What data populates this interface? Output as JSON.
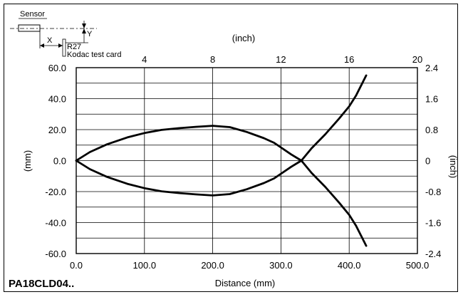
{
  "figure_code": "PA18CLD04..",
  "diagram": {
    "sensor_label": "Sensor",
    "x_label": "X",
    "y_label": "Y",
    "target_label": "R27",
    "card_label": "Kodac test card"
  },
  "chart_data": {
    "type": "line",
    "xlabel": "Distance (mm)",
    "ylabel": "(mm)",
    "x2label": "(inch)",
    "y2label": "(inch)",
    "xlim": [
      0,
      500
    ],
    "ylim": [
      -60,
      60
    ],
    "x2lim": [
      0,
      20
    ],
    "y2lim": [
      -2.4,
      2.4
    ],
    "x_ticks": [
      "0.0",
      "100.0",
      "200.0",
      "300.0",
      "400.0",
      "500.0"
    ],
    "y_ticks": [
      "60.0",
      "40.0",
      "20.0",
      "0.0",
      "-20.0",
      "-40.0",
      "-60.0"
    ],
    "x2_ticks": [
      "4",
      "8",
      "12",
      "16",
      "20"
    ],
    "y2_ticks": [
      "2.4",
      "1.6",
      "0.8",
      "0",
      "-0.8",
      "-1.6",
      "-2.4"
    ],
    "grid": true,
    "series": [
      {
        "x": [
          0,
          20,
          45,
          75,
          100,
          125,
          150,
          175,
          200,
          225,
          250,
          275,
          290,
          300,
          315,
          330
        ],
        "values": [
          0,
          5.5,
          10.5,
          15,
          17.8,
          19.8,
          20.9,
          21.8,
          22.5,
          21.6,
          18.5,
          14.5,
          11.5,
          8.5,
          4,
          0
        ]
      },
      {
        "x": [
          0,
          20,
          45,
          75,
          100,
          125,
          150,
          175,
          200,
          225,
          250,
          275,
          290,
          300,
          315,
          330
        ],
        "values": [
          0,
          -5.5,
          -10.5,
          -15,
          -17.8,
          -19.8,
          -20.9,
          -21.8,
          -22.5,
          -21.6,
          -18.5,
          -14.5,
          -11.5,
          -8.5,
          -4,
          0
        ]
      },
      {
        "x": [
          330,
          345,
          365,
          385,
          400,
          410,
          425
        ],
        "values": [
          0,
          8,
          17,
          27,
          35,
          42,
          55
        ]
      },
      {
        "x": [
          330,
          345,
          365,
          385,
          400,
          410,
          425
        ],
        "values": [
          0,
          -8,
          -17,
          -27,
          -35,
          -42,
          -55
        ]
      }
    ]
  }
}
